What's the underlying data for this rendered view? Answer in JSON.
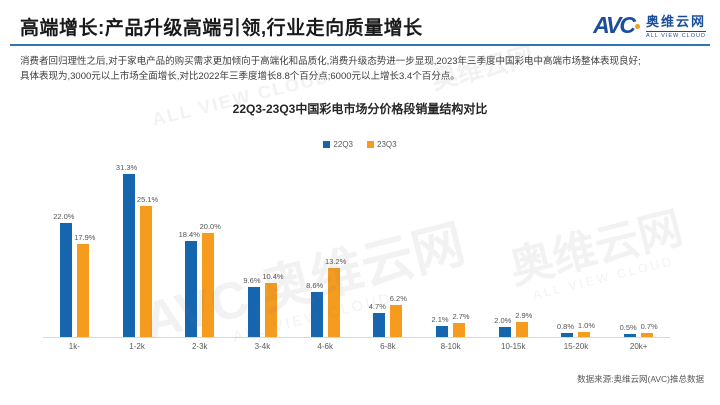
{
  "header": {
    "title": "高端增长:产品升级高端引领,行业走向质量增长",
    "logo": {
      "brand": "AVC",
      "name": "奥维云网",
      "subtitle": "ALL VIEW CLOUD"
    }
  },
  "intro": {
    "line1": "消费者回归理性之后,对于家电产品的购买需求更加倾向于高端化和品质化,消费升级态势进一步显现,2023年三季度中国彩电中高端市场整体表现良好;",
    "line2": "具体表现为,3000元以上市场全面增长,对比2022年三季度增长8.8个百分点;6000元以上增长3.4个百分点。"
  },
  "chart_data": {
    "type": "bar",
    "title": "22Q3-23Q3中国彩电市场分价格段销量结构对比",
    "categories": [
      "1k-",
      "1-2k",
      "2-3k",
      "3-4k",
      "4-6k",
      "6-8k",
      "8-10k",
      "10-15k",
      "15-20k",
      "20k+"
    ],
    "series": [
      {
        "name": "22Q3",
        "color": "#1565af",
        "values": [
          22.0,
          31.3,
          18.4,
          9.6,
          8.6,
          4.7,
          2.1,
          2.0,
          0.8,
          0.5
        ]
      },
      {
        "name": "23Q3",
        "color": "#f59b1e",
        "values": [
          17.9,
          25.1,
          20.0,
          10.4,
          13.2,
          6.2,
          2.7,
          2.9,
          1.0,
          0.7
        ]
      }
    ],
    "unit": "%",
    "ylim": [
      0,
      35
    ],
    "grid": false,
    "legend_position": "top",
    "value_labels": true
  },
  "footer": {
    "source": "数据来源:奥维云网(AVC)推总数据"
  },
  "watermark": {
    "brand": "AVC",
    "name": "奥维云网",
    "subtitle": "ALL VIEW CLOUD"
  },
  "colors": {
    "accent_blue": "#1565af",
    "accent_orange": "#f59b1e",
    "title_underline": "#2e75b6",
    "logo_blue": "#1b4f9c"
  }
}
